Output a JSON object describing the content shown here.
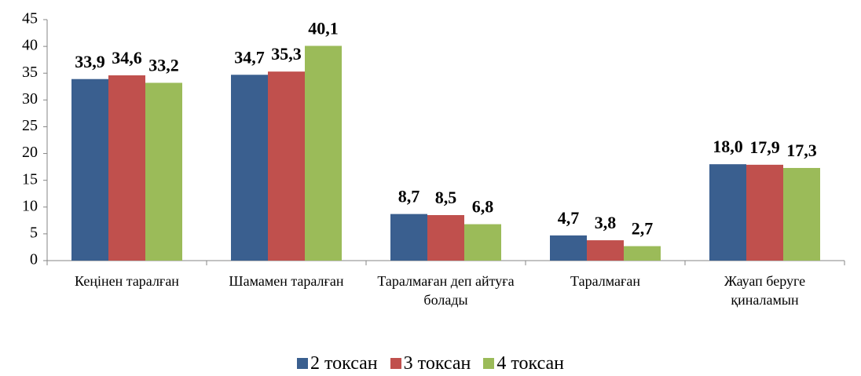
{
  "chart_data": {
    "type": "bar",
    "categories": [
      "Кеңінен таралған",
      "Шамамен таралған",
      "Таралмаған деп айтуға болады",
      "Таралмаған",
      "Жауап беруге қиналамын"
    ],
    "series": [
      {
        "name": "2 токсан",
        "color": "#3a5f8f",
        "values": [
          33.9,
          34.7,
          8.7,
          4.7,
          18.0
        ],
        "value_labels": [
          "33,9",
          "34,7",
          "8,7",
          "4,7",
          "18,0"
        ]
      },
      {
        "name": "3 токсан",
        "color": "#c0504d",
        "values": [
          34.6,
          35.3,
          8.5,
          3.8,
          17.9
        ],
        "value_labels": [
          "34,6",
          "35,3",
          "8,5",
          "3,8",
          "17,9"
        ]
      },
      {
        "name": "4 токсан",
        "color": "#9bbb59",
        "values": [
          33.2,
          40.1,
          6.8,
          2.7,
          17.3
        ],
        "value_labels": [
          "33,2",
          "40,1",
          "6,8",
          "2,7",
          "17,3"
        ]
      }
    ],
    "ylim": [
      0,
      45
    ],
    "yticks": [
      0,
      5,
      10,
      15,
      20,
      25,
      30,
      35,
      40,
      45
    ],
    "grid": false,
    "legend": "bottom"
  }
}
